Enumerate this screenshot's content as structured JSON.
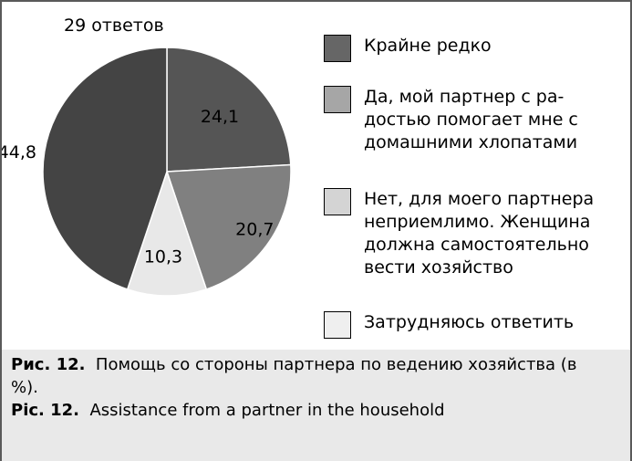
{
  "chart_data": {
    "type": "pie",
    "title": "29 ответов",
    "slices": [
      {
        "label": "Крайне редко",
        "value": 24.1,
        "display": "24,1",
        "color": "#555555"
      },
      {
        "label": "Да, мой партнер с ра-\nдостью помогает мне с\nдомашними хлопатами",
        "value": 20.7,
        "display": "20,7",
        "color": "#808080"
      },
      {
        "label": "Затрудняюсь ответить",
        "value": 10.3,
        "display": "10,3",
        "color": "#e8e8e8"
      },
      {
        "label": "Нет, для моего партнера\nнеприемлимо. Женщина\nдолжна самостоятельно\nвести хозяйство",
        "value": 44.8,
        "display": "44,8",
        "color": "#444444"
      }
    ],
    "legend": [
      {
        "text": "Крайне редко",
        "color": "#666666"
      },
      {
        "text": "Да, мой партнер с ра-\nдостью помогает мне с\nдомашними хлопатами",
        "color": "#a6a6a6"
      },
      {
        "text": "Нет, для моего партнера\nнеприемлимо. Женщина\nдолжна самостоятельно\nвести хозяйство",
        "color": "#d4d4d4"
      },
      {
        "text": "Затрудняюсь ответить",
        "color": "#efefef"
      }
    ]
  },
  "caption": {
    "ru_label": "Рис. 12.",
    "ru_text": "Помощь со стороны партнера по ведению хозяйства (в %).",
    "en_label": "Pic. 12.",
    "en_text": "Assistance from a partner in the household"
  }
}
